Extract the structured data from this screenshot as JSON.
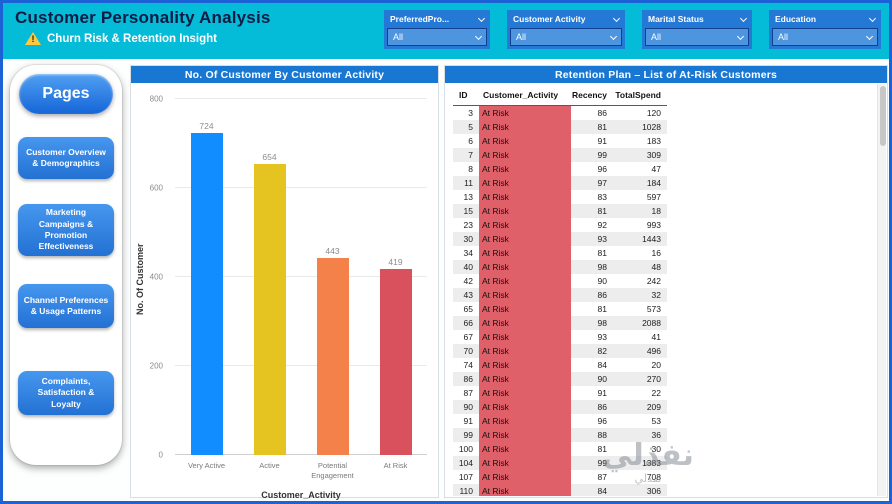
{
  "window": {
    "title": "Customer Personality Analysis",
    "subtitle": "Churn Risk & Retention Insight"
  },
  "colors": {
    "header_bg": "#05BCD8",
    "title_bar": "#1877D2",
    "slicer_bg": "#2579D6",
    "slicer_dropdown_bg": "#4E95E0",
    "status_cell": "#E0606A"
  },
  "header": {
    "slicers": [
      {
        "label": "PreferredPro...",
        "value": "All"
      },
      {
        "label": "Customer Activity",
        "value": "All"
      },
      {
        "label": "Marital Status",
        "value": "All"
      },
      {
        "label": "Education",
        "value": "All"
      }
    ]
  },
  "sidebar": {
    "title": "Pages",
    "items": [
      {
        "label": "Customer Overview & Demographics"
      },
      {
        "label": "Marketing Campaigns & Promotion Effectiveness"
      },
      {
        "label": "Channel Preferences & Usage Patterns"
      },
      {
        "label": "Complaints, Satisfaction & Loyalty"
      }
    ]
  },
  "chart_data": {
    "type": "bar",
    "title": "No. Of Customer By Customer Activity",
    "categories": [
      "Very Active",
      "Active",
      "Potential Engagement",
      "At Risk"
    ],
    "values": [
      724,
      654,
      443,
      419
    ],
    "colors": [
      "#118DFF",
      "#E5C422",
      "#F4804A",
      "#D9515C"
    ],
    "xlabel": "Customer_Activity",
    "ylabel": "No. Of Customer",
    "ylim": [
      0,
      800
    ],
    "yticks": [
      0,
      200,
      400,
      600,
      800
    ],
    "grid": true,
    "legend": false
  },
  "table": {
    "title": "Retention Plan – List of At-Risk Customers",
    "columns": [
      "ID",
      "Customer_Activity",
      "Recency",
      "TotalSpend"
    ],
    "rows": [
      [
        3,
        "At Risk",
        86,
        120
      ],
      [
        5,
        "At Risk",
        81,
        1028
      ],
      [
        6,
        "At Risk",
        91,
        183
      ],
      [
        7,
        "At Risk",
        99,
        309
      ],
      [
        8,
        "At Risk",
        96,
        47
      ],
      [
        11,
        "At Risk",
        97,
        184
      ],
      [
        13,
        "At Risk",
        83,
        597
      ],
      [
        15,
        "At Risk",
        81,
        18
      ],
      [
        23,
        "At Risk",
        92,
        993
      ],
      [
        30,
        "At Risk",
        93,
        1443
      ],
      [
        34,
        "At Risk",
        81,
        16
      ],
      [
        40,
        "At Risk",
        98,
        48
      ],
      [
        42,
        "At Risk",
        90,
        242
      ],
      [
        43,
        "At Risk",
        86,
        32
      ],
      [
        65,
        "At Risk",
        81,
        573
      ],
      [
        66,
        "At Risk",
        98,
        2088
      ],
      [
        67,
        "At Risk",
        93,
        41
      ],
      [
        70,
        "At Risk",
        82,
        496
      ],
      [
        74,
        "At Risk",
        84,
        20
      ],
      [
        86,
        "At Risk",
        90,
        270
      ],
      [
        87,
        "At Risk",
        91,
        22
      ],
      [
        90,
        "At Risk",
        86,
        209
      ],
      [
        91,
        "At Risk",
        96,
        53
      ],
      [
        99,
        "At Risk",
        88,
        36
      ],
      [
        100,
        "At Risk",
        81,
        30
      ],
      [
        104,
        "At Risk",
        99,
        1383
      ],
      [
        107,
        "At Risk",
        87,
        708
      ],
      [
        110,
        "At Risk",
        84,
        306
      ]
    ]
  },
  "watermark": {
    "text": "نفذلي",
    "subtext": "نفذلي"
  }
}
